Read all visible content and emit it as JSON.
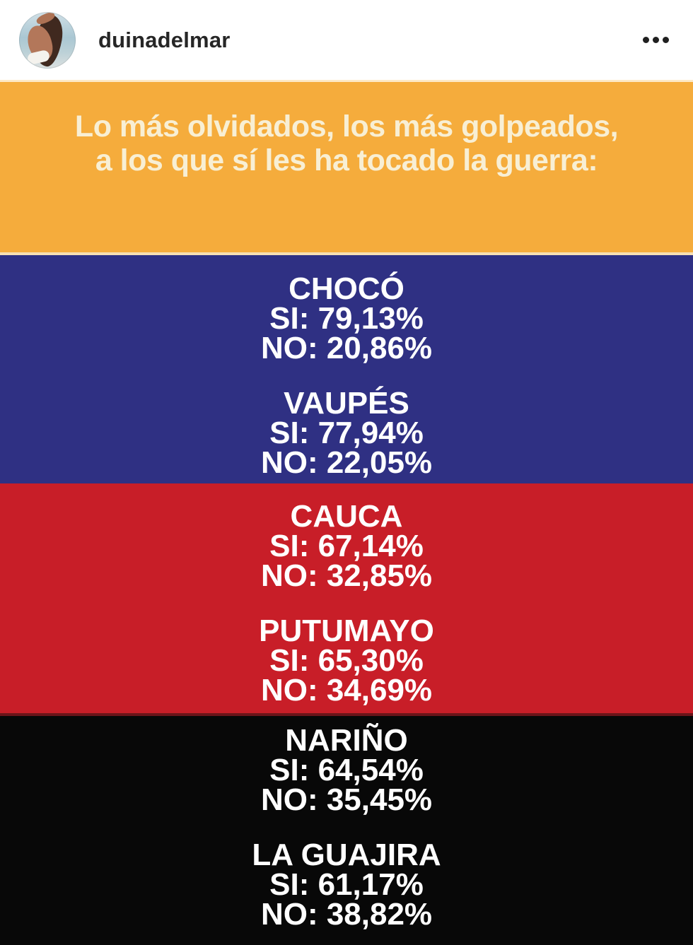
{
  "header": {
    "username": "duinadelmar",
    "more_options": "more-options"
  },
  "post": {
    "title_line1": "Lo más olvidados, los más golpeados,",
    "title_line2": "a los que sí les ha tocado la guerra:",
    "colors": {
      "band-yellow": "#F5AC3C",
      "band-blue": "#2F3083",
      "band-red": "#C81E28",
      "band-black": "#080808",
      "title-text": "#F8EFD4",
      "value-text": "#FFFFFF"
    },
    "departments": [
      {
        "name": "CHOCÓ",
        "si": "SI: 79,13%",
        "no": "NO: 20,86%",
        "band": "blue"
      },
      {
        "name": "VAUPÉS",
        "si": "SI: 77,94%",
        "no": "NO: 22,05%",
        "band": "blue"
      },
      {
        "name": "CAUCA",
        "si": "SI: 67,14%",
        "no": "NO: 32,85%",
        "band": "red"
      },
      {
        "name": "PUTUMAYO",
        "si": "SI: 65,30%",
        "no": "NO: 34,69%",
        "band": "red"
      },
      {
        "name": "NARIÑO",
        "si": "SI: 64,54%",
        "no": "NO: 35,45%",
        "band": "black"
      },
      {
        "name": "LA GUAJIRA",
        "si": "SI: 61,17%",
        "no": "NO: 38,82%",
        "band": "black"
      }
    ]
  }
}
